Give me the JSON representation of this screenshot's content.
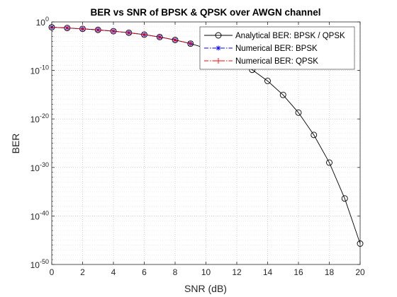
{
  "chart_data": {
    "type": "line",
    "title": "BER vs SNR of BPSK & QPSK over AWGN channel",
    "xlabel": "SNR (dB)",
    "ylabel": "BER",
    "xlim": [
      0,
      20
    ],
    "ylim_exponent": [
      -50,
      0
    ],
    "yscale": "log",
    "grid": true,
    "legend_position": "top-right",
    "x_ticks": [
      "0",
      "2",
      "4",
      "6",
      "8",
      "10",
      "12",
      "14",
      "16",
      "18",
      "20"
    ],
    "y_ticks": [
      {
        "value": 1.0,
        "base": "10",
        "exp": "0"
      },
      {
        "value": 1e-10,
        "base": "10",
        "exp": "-10"
      },
      {
        "value": 1e-20,
        "base": "10",
        "exp": "-20"
      },
      {
        "value": 1e-30,
        "base": "10",
        "exp": "-30"
      },
      {
        "value": 1e-40,
        "base": "10",
        "exp": "-40"
      },
      {
        "value": 1e-50,
        "base": "10",
        "exp": "-50"
      }
    ],
    "series": [
      {
        "name": "Analytical BER: BPSK / QPSK",
        "color": "#000000",
        "line_style": "solid",
        "marker": "circle",
        "x": [
          0,
          1,
          2,
          3,
          4,
          5,
          6,
          7,
          8,
          9,
          10,
          11,
          12,
          13,
          14,
          15,
          16,
          17,
          18,
          19,
          20
        ],
        "y": [
          0.0787,
          0.0563,
          0.0375,
          0.0229,
          0.0125,
          0.00595,
          0.00239,
          0.000773,
          0.000191,
          3.36e-05,
          3.87e-06,
          2.61e-07,
          9e-09,
          1.33e-10,
          6.8e-13,
          9.1e-16,
          2e-19,
          5e-24,
          1e-29,
          4e-37,
          2e-46
        ]
      },
      {
        "name": "Numerical BER: BPSK",
        "color": "#0000ff",
        "line_style": "dash-dot",
        "marker": "asterisk",
        "x": [
          0,
          1,
          2,
          3,
          4,
          5,
          6,
          7,
          8,
          9
        ],
        "y": [
          0.0787,
          0.0563,
          0.0375,
          0.0229,
          0.0125,
          0.00595,
          0.00239,
          0.000773,
          0.000191,
          3.36e-05
        ]
      },
      {
        "name": "Numerical BER: QPSK",
        "color": "#ff0000",
        "line_style": "dash-dot",
        "marker": "plus",
        "x": [
          0,
          1,
          2,
          3,
          4,
          5,
          6,
          7,
          8,
          9
        ],
        "y": [
          0.0787,
          0.0563,
          0.0375,
          0.0229,
          0.0125,
          0.00595,
          0.00239,
          0.000773,
          0.000191,
          3.36e-05
        ]
      }
    ]
  }
}
